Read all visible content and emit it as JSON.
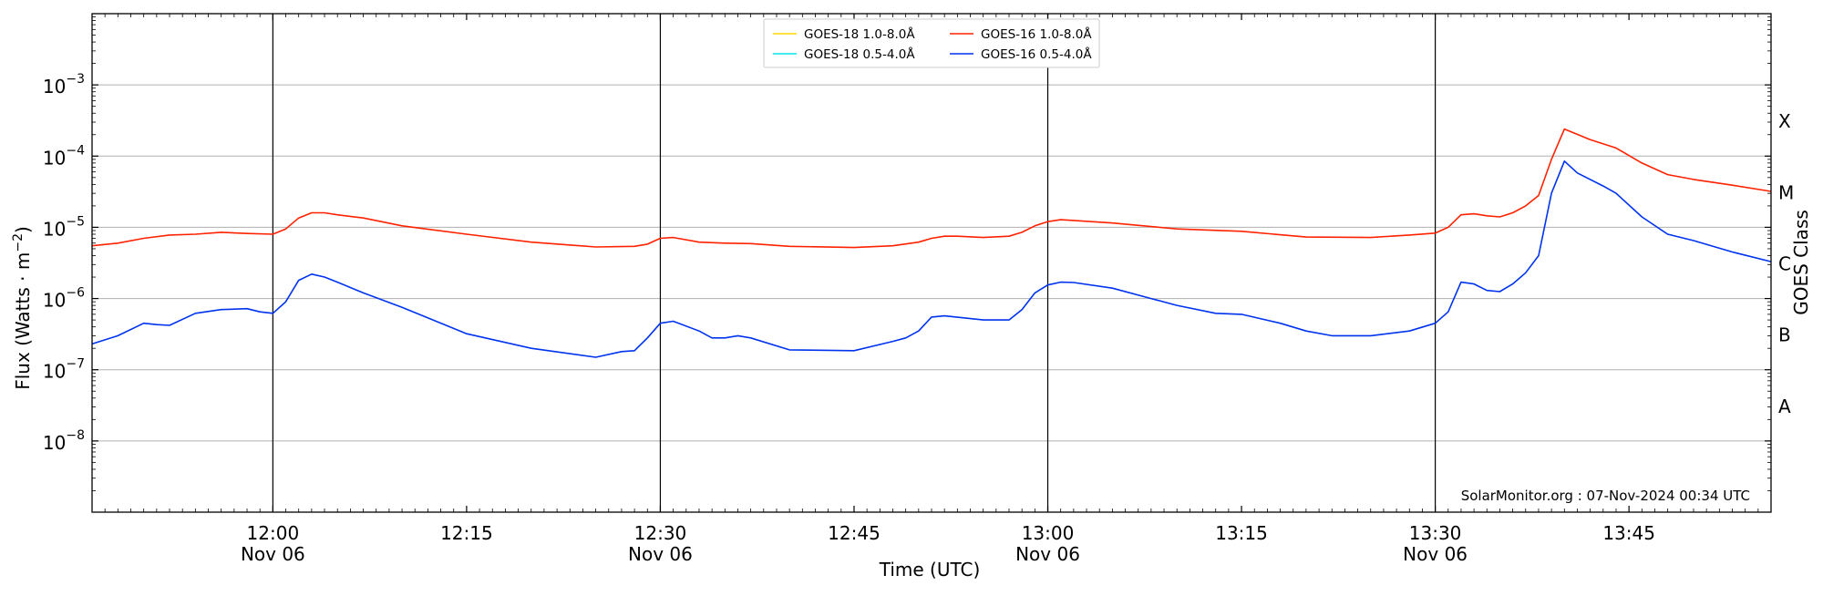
{
  "chart_data": {
    "type": "line",
    "title": "",
    "xlabel": "Time (UTC)",
    "ylabel": "Flux (Watts · m",
    "ylabel_sup": "−2",
    "ylabel_close": ")",
    "right_label": "GOES Class",
    "y_scale": "log",
    "ylim": [
      1e-09,
      0.01
    ],
    "xlim": [
      "2024-11-06 11:46",
      "2024-11-06 13:56"
    ],
    "grid": "horizontal",
    "legend_placement": "top-center",
    "credit": "SolarMonitor.org : 07-Nov-2024 00:34 UTC",
    "y_ticks": [
      {
        "value": 1e-08,
        "base": "10",
        "exp": "−8"
      },
      {
        "value": 1e-07,
        "base": "10",
        "exp": "−7"
      },
      {
        "value": 1e-06,
        "base": "10",
        "exp": "−6"
      },
      {
        "value": 1e-05,
        "base": "10",
        "exp": "−5"
      },
      {
        "value": 0.0001,
        "base": "10",
        "exp": "−4"
      },
      {
        "value": 0.001,
        "base": "10",
        "exp": "−3"
      }
    ],
    "x_ticks": [
      {
        "time": "12:00",
        "label": "12:00",
        "sublabel": "Nov 06",
        "vline": true
      },
      {
        "time": "12:15",
        "label": "12:15",
        "sublabel": "",
        "vline": false
      },
      {
        "time": "12:30",
        "label": "12:30",
        "sublabel": "Nov 06",
        "vline": true
      },
      {
        "time": "12:45",
        "label": "12:45",
        "sublabel": "",
        "vline": false
      },
      {
        "time": "13:00",
        "label": "13:00",
        "sublabel": "Nov 06",
        "vline": true
      },
      {
        "time": "13:15",
        "label": "13:15",
        "sublabel": "",
        "vline": false
      },
      {
        "time": "13:30",
        "label": "13:30",
        "sublabel": "Nov 06",
        "vline": true
      },
      {
        "time": "13:45",
        "label": "13:45",
        "sublabel": "",
        "vline": false
      }
    ],
    "goes_classes": [
      {
        "label": "A",
        "value": 3.16e-08
      },
      {
        "label": "B",
        "value": 3.16e-07
      },
      {
        "label": "C",
        "value": 3.16e-06
      },
      {
        "label": "M",
        "value": 3.16e-05
      },
      {
        "label": "X",
        "value": 0.000316
      }
    ],
    "legend": [
      {
        "name": "GOES-18 1.0-8.0Å",
        "color": "#ffd700"
      },
      {
        "name": "GOES-18 0.5-4.0Å",
        "color": "#00e5ee"
      },
      {
        "name": "GOES-16 1.0-8.0Å",
        "color": "#ff2200"
      },
      {
        "name": "GOES-16 0.5-4.0Å",
        "color": "#0033ee"
      }
    ],
    "series": [
      {
        "name": "GOES-16 1.0-8.0Å",
        "color": "#ff2200",
        "x": [
          "11:46",
          "11:48",
          "11:50",
          "11:52",
          "11:54",
          "11:56",
          "11:58",
          "12:00",
          "12:01",
          "12:02",
          "12:03",
          "12:04",
          "12:05",
          "12:07",
          "12:10",
          "12:15",
          "12:20",
          "12:25",
          "12:28",
          "12:29",
          "12:30",
          "12:31",
          "12:33",
          "12:35",
          "12:37",
          "12:40",
          "12:45",
          "12:48",
          "12:50",
          "12:51",
          "12:52",
          "12:53",
          "12:55",
          "12:57",
          "12:58",
          "12:59",
          "13:00",
          "13:01",
          "13:02",
          "13:05",
          "13:10",
          "13:15",
          "13:20",
          "13:25",
          "13:28",
          "13:30",
          "13:31",
          "13:32",
          "13:33",
          "13:34",
          "13:35",
          "13:36",
          "13:37",
          "13:38",
          "13:39",
          "13:40",
          "13:42",
          "13:44",
          "13:46",
          "13:48",
          "13:50",
          "13:53",
          "13:56"
        ],
        "values": [
          5.5e-06,
          6e-06,
          7e-06,
          7.8e-06,
          8e-06,
          8.5e-06,
          8.2e-06,
          8e-06,
          9.5e-06,
          1.35e-05,
          1.6e-05,
          1.6e-05,
          1.5e-05,
          1.35e-05,
          1.05e-05,
          8e-06,
          6.2e-06,
          5.3e-06,
          5.4e-06,
          5.8e-06,
          7e-06,
          7.2e-06,
          6.2e-06,
          6e-06,
          5.9e-06,
          5.4e-06,
          5.2e-06,
          5.5e-06,
          6.2e-06,
          7e-06,
          7.5e-06,
          7.5e-06,
          7.2e-06,
          7.5e-06,
          8.5e-06,
          1.05e-05,
          1.2e-05,
          1.28e-05,
          1.25e-05,
          1.15e-05,
          9.5e-06,
          8.8e-06,
          7.3e-06,
          7.2e-06,
          7.8e-06,
          8.3e-06,
          1e-05,
          1.5e-05,
          1.55e-05,
          1.45e-05,
          1.4e-05,
          1.6e-05,
          2e-05,
          2.8e-05,
          9e-05,
          0.00024,
          0.00017,
          0.00013,
          8e-05,
          5.5e-05,
          4.7e-05,
          3.9e-05,
          3.2e-05
        ]
      },
      {
        "name": "GOES-16 0.5-4.0Å",
        "color": "#0033ee",
        "x": [
          "11:46",
          "11:48",
          "11:50",
          "11:51",
          "11:52",
          "11:54",
          "11:56",
          "11:58",
          "11:59",
          "12:00",
          "12:01",
          "12:02",
          "12:03",
          "12:04",
          "12:05",
          "12:07",
          "12:10",
          "12:15",
          "12:20",
          "12:25",
          "12:27",
          "12:28",
          "12:29",
          "12:30",
          "12:31",
          "12:33",
          "12:34",
          "12:35",
          "12:36",
          "12:37",
          "12:40",
          "12:45",
          "12:48",
          "12:49",
          "12:50",
          "12:51",
          "12:52",
          "12:55",
          "12:57",
          "12:58",
          "12:59",
          "13:00",
          "13:01",
          "13:02",
          "13:05",
          "13:08",
          "13:10",
          "13:13",
          "13:15",
          "13:18",
          "13:20",
          "13:22",
          "13:25",
          "13:28",
          "13:30",
          "13:31",
          "13:32",
          "13:33",
          "13:34",
          "13:35",
          "13:36",
          "13:37",
          "13:38",
          "13:39",
          "13:40",
          "13:41",
          "13:43",
          "13:44",
          "13:46",
          "13:48",
          "13:50",
          "13:53",
          "13:56"
        ],
        "values": [
          2.3e-07,
          3e-07,
          4.5e-07,
          4.3e-07,
          4.2e-07,
          6.2e-07,
          7e-07,
          7.2e-07,
          6.5e-07,
          6.2e-07,
          9e-07,
          1.8e-06,
          2.2e-06,
          2e-06,
          1.7e-06,
          1.2e-06,
          7.5e-07,
          3.2e-07,
          2e-07,
          1.5e-07,
          1.8e-07,
          1.85e-07,
          2.8e-07,
          4.5e-07,
          4.8e-07,
          3.5e-07,
          2.8e-07,
          2.8e-07,
          3e-07,
          2.8e-07,
          1.9e-07,
          1.85e-07,
          2.5e-07,
          2.8e-07,
          3.5e-07,
          5.5e-07,
          5.7e-07,
          5e-07,
          5e-07,
          7e-07,
          1.2e-06,
          1.55e-06,
          1.7e-06,
          1.68e-06,
          1.4e-06,
          1e-06,
          8e-07,
          6.2e-07,
          6e-07,
          4.5e-07,
          3.5e-07,
          3e-07,
          3e-07,
          3.5e-07,
          4.5e-07,
          6.5e-07,
          1.7e-06,
          1.6e-06,
          1.3e-06,
          1.25e-06,
          1.6e-06,
          2.3e-06,
          4e-06,
          3e-05,
          8.5e-05,
          5.8e-05,
          3.8e-05,
          3e-05,
          1.4e-05,
          8e-06,
          6.5e-06,
          4.5e-06,
          3.3e-06
        ]
      }
    ]
  }
}
